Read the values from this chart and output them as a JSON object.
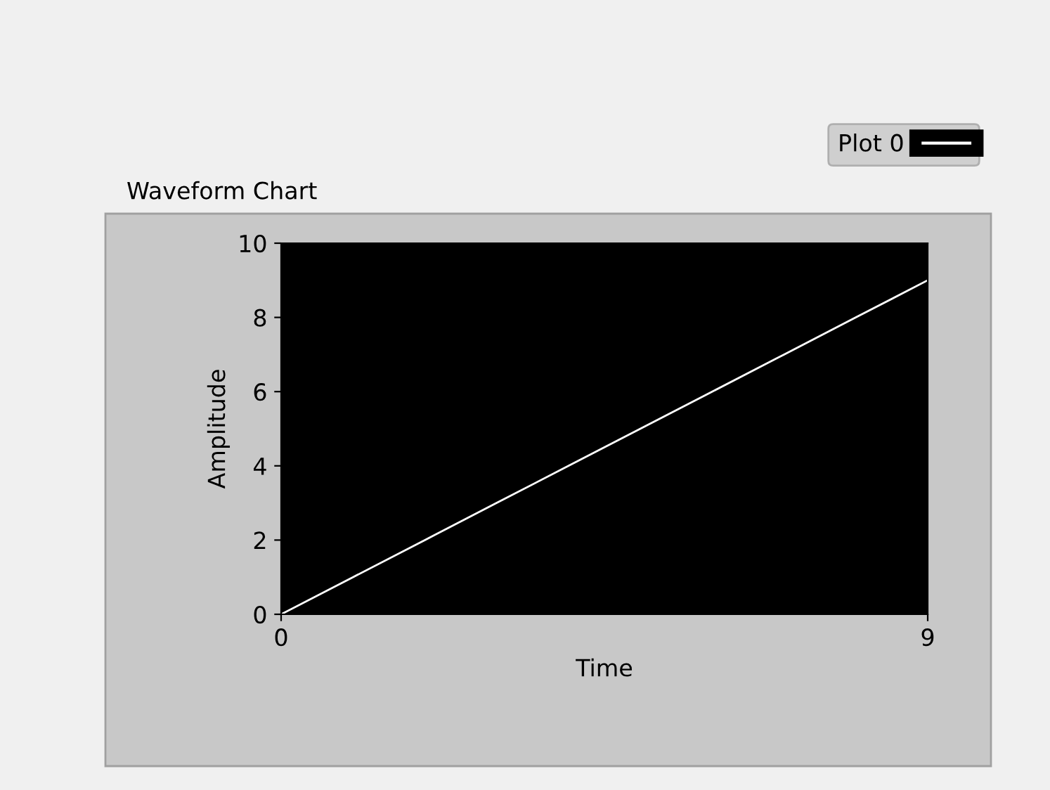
{
  "chart_data": {
    "type": "line",
    "title": "Waveform Chart",
    "xlabel": "Time",
    "ylabel": "Amplitude",
    "x": [
      0,
      1,
      2,
      3,
      4,
      5,
      6,
      7,
      8,
      9
    ],
    "series": [
      {
        "name": "Plot 0",
        "color": "#ffffff",
        "values": [
          0,
          1,
          2,
          3,
          4,
          5,
          6,
          7,
          8,
          9
        ]
      }
    ],
    "xlim": [
      0,
      9
    ],
    "xticks": [
      0,
      9
    ],
    "ylim": [
      0,
      10
    ],
    "yticks": [
      0,
      2,
      4,
      6,
      8,
      10
    ],
    "grid": false,
    "legend": "top right",
    "marker": "none",
    "line_style": "solid"
  }
}
